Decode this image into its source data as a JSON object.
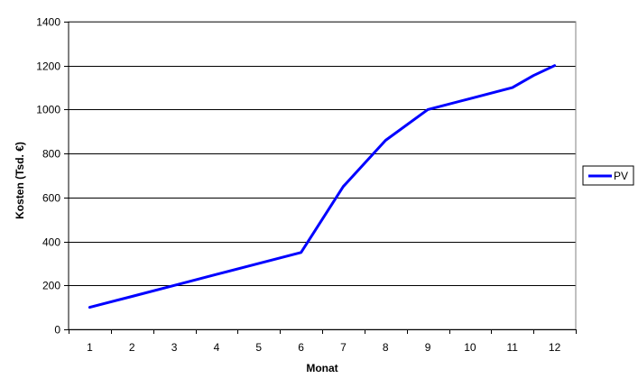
{
  "chart_data": {
    "type": "line",
    "title": "",
    "xlabel": "Monat",
    "ylabel": "Kosten (Tsd. €)",
    "categories": [
      "1",
      "2",
      "3",
      "4",
      "5",
      "6",
      "7",
      "8",
      "9",
      "10",
      "11",
      "12"
    ],
    "series": [
      {
        "name": "PV",
        "color": "#0000ff",
        "x": [
          1,
          2,
          3,
          4,
          5,
          6,
          7,
          8,
          9,
          10,
          11,
          11.5,
          12
        ],
        "values": [
          100,
          150,
          200,
          250,
          300,
          350,
          650,
          860,
          1000,
          1050,
          1100,
          1155,
          1200
        ]
      }
    ],
    "ylim": [
      0,
      1400
    ],
    "yticks": [
      0,
      200,
      400,
      600,
      800,
      1000,
      1200,
      1400
    ],
    "grid": true,
    "legend": "right"
  }
}
